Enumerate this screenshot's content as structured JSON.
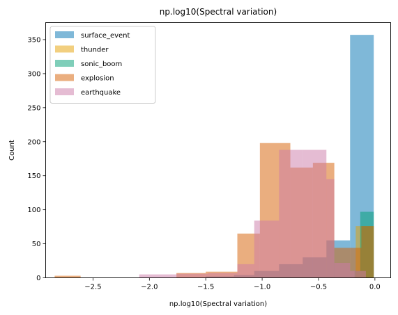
{
  "chart_data": {
    "type": "histogram",
    "title": "np.log10(Spectral variation)",
    "xlabel": "np.log10(Spectral variation)",
    "ylabel": "Count",
    "xlim": [
      -2.92,
      0.14
    ],
    "ylim": [
      0,
      375
    ],
    "xticks": [
      -2.5,
      -2.0,
      -1.5,
      -1.0,
      -0.5,
      0.0
    ],
    "xtick_labels": [
      "−2.5",
      "−2.0",
      "−1.5",
      "−1.0",
      "−0.5",
      "0.0"
    ],
    "yticks": [
      0,
      50,
      100,
      150,
      200,
      250,
      300,
      350
    ],
    "ytick_labels": [
      "0",
      "50",
      "100",
      "150",
      "200",
      "250",
      "300",
      "350"
    ],
    "grid": false,
    "legend_position": "top-left",
    "bar_opacity": 0.5,
    "series": [
      {
        "name": "surface_event",
        "color": "#0072B2",
        "bins": [
          {
            "x0": -1.5,
            "x1": -1.25,
            "count": 2
          },
          {
            "x0": -1.25,
            "x1": -1.07,
            "count": 4
          },
          {
            "x0": -1.07,
            "x1": -0.85,
            "count": 10
          },
          {
            "x0": -0.85,
            "x1": -0.64,
            "count": 20
          },
          {
            "x0": -0.64,
            "x1": -0.43,
            "count": 30
          },
          {
            "x0": -0.43,
            "x1": -0.22,
            "count": 55
          },
          {
            "x0": -0.22,
            "x1": -0.01,
            "count": 357
          }
        ]
      },
      {
        "name": "thunder",
        "color": "#E69F00",
        "bins": [
          {
            "x0": -0.17,
            "x1": -0.01,
            "count": 76
          }
        ]
      },
      {
        "name": "sonic_boom",
        "color": "#009E73",
        "bins": [
          {
            "x0": -0.18,
            "x1": -0.13,
            "count": 10
          },
          {
            "x0": -0.13,
            "x1": -0.01,
            "count": 97
          }
        ]
      },
      {
        "name": "explosion",
        "color": "#D55E00",
        "bins": [
          {
            "x0": -2.84,
            "x1": -2.61,
            "count": 3
          },
          {
            "x0": -1.76,
            "x1": -1.5,
            "count": 7
          },
          {
            "x0": -1.5,
            "x1": -1.22,
            "count": 9
          },
          {
            "x0": -1.22,
            "x1": -1.02,
            "count": 65
          },
          {
            "x0": -1.02,
            "x1": -0.75,
            "count": 198
          },
          {
            "x0": -0.75,
            "x1": -0.55,
            "count": 162
          },
          {
            "x0": -0.55,
            "x1": -0.36,
            "count": 169
          },
          {
            "x0": -0.36,
            "x1": -0.12,
            "count": 44
          },
          {
            "x0": -0.12,
            "x1": -0.01,
            "count": 76
          }
        ]
      },
      {
        "name": "earthquake",
        "color": "#CC79A7",
        "bins": [
          {
            "x0": -2.09,
            "x1": -1.76,
            "count": 5
          },
          {
            "x0": -1.76,
            "x1": -1.48,
            "count": 6
          },
          {
            "x0": -1.48,
            "x1": -1.22,
            "count": 7
          },
          {
            "x0": -1.22,
            "x1": -1.07,
            "count": 20
          },
          {
            "x0": -1.07,
            "x1": -0.85,
            "count": 84
          },
          {
            "x0": -0.85,
            "x1": -0.64,
            "count": 188
          },
          {
            "x0": -0.64,
            "x1": -0.43,
            "count": 188
          },
          {
            "x0": -0.43,
            "x1": -0.36,
            "count": 145
          },
          {
            "x0": -0.36,
            "x1": -0.22,
            "count": 22
          },
          {
            "x0": -0.22,
            "x1": -0.08,
            "count": 10
          }
        ]
      }
    ]
  }
}
